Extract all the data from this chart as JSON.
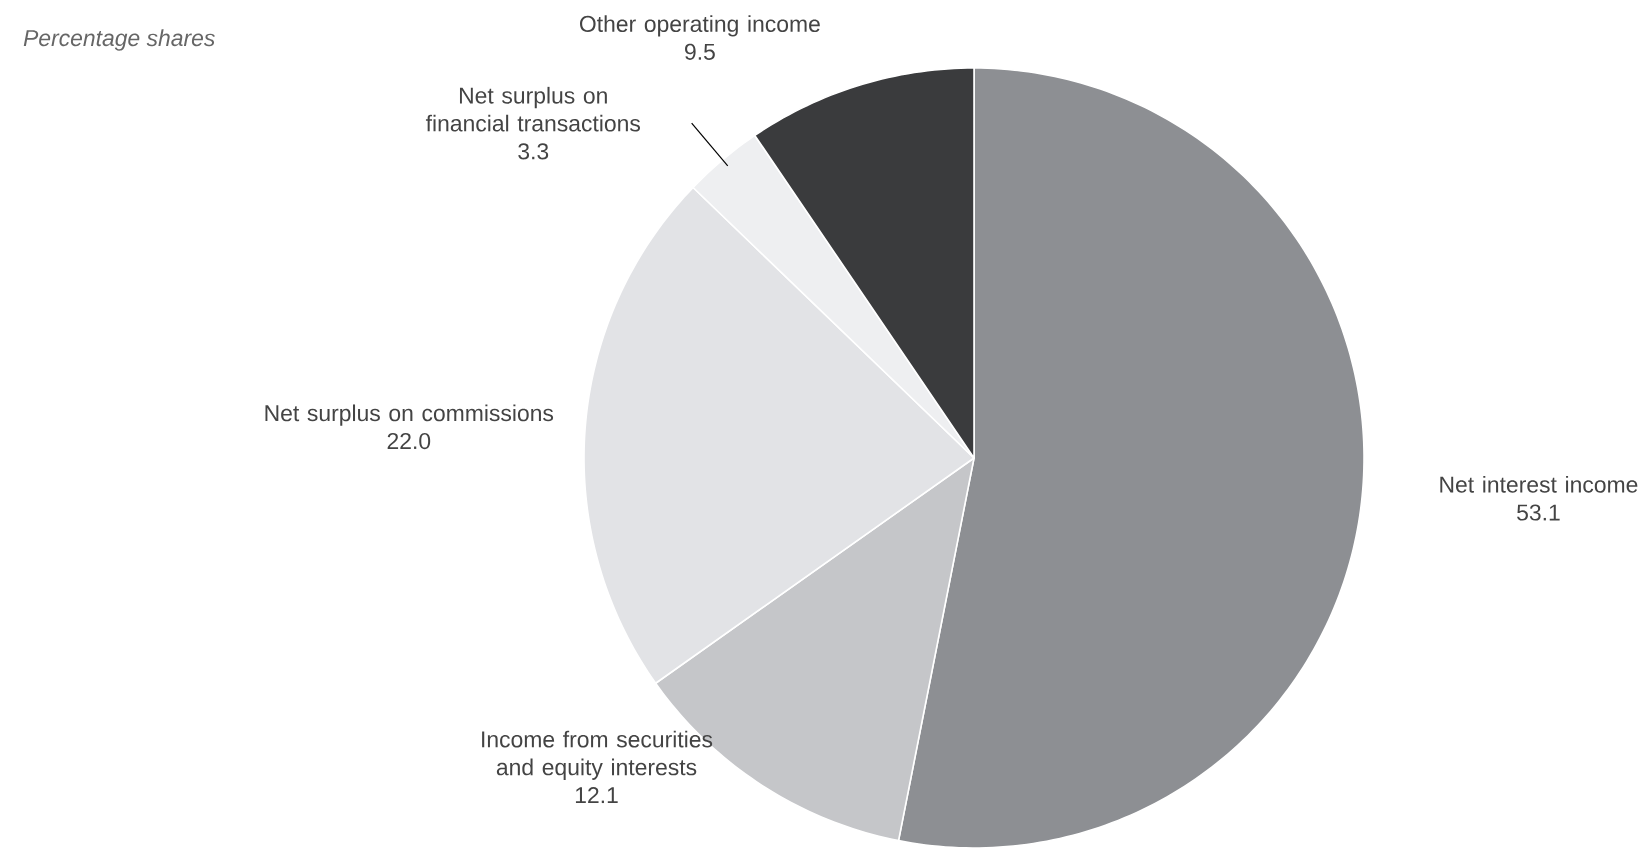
{
  "chart_data": {
    "type": "pie",
    "title": "Percentage shares",
    "categories": [
      "Net interest income",
      "Income from securities and equity interests",
      "Net surplus on commissions",
      "Net surplus on financial transactions",
      "Other operating income"
    ],
    "values": [
      53.1,
      12.1,
      22.0,
      3.3,
      9.5
    ],
    "value_labels": [
      "53.1",
      "12.1",
      "22.0",
      "3.3",
      "9.5"
    ],
    "colors": [
      "#8d8f93",
      "#c5c6c9",
      "#e2e3e6",
      "#eeeff1",
      "#3a3b3d"
    ]
  }
}
